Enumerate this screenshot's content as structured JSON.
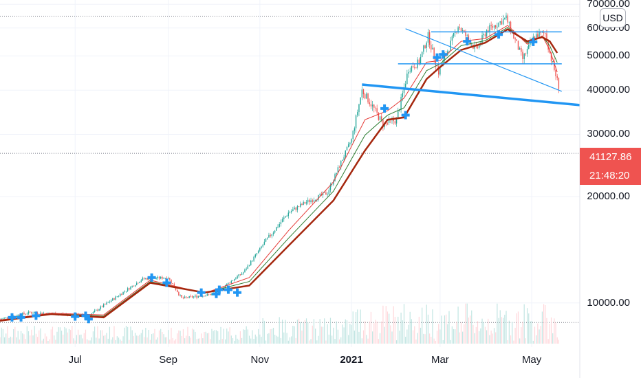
{
  "chart_data": {
    "type": "candlestick",
    "currency": "USD",
    "y_scale": "log",
    "ylim": [
      7500,
      72000
    ],
    "yticks": [
      {
        "value": 10000,
        "label": "10000.00"
      },
      {
        "value": 20000,
        "label": "20000.00"
      },
      {
        "value": 30000,
        "label": "30000.00"
      },
      {
        "value": 40000,
        "label": "40000.00"
      },
      {
        "value": 50000,
        "label": "50000.00"
      },
      {
        "value": 60000,
        "label": "60000.00"
      },
      {
        "value": 70000,
        "label": "70000.00"
      }
    ],
    "xticks": [
      {
        "date": "2020-07-01",
        "label": "Jul",
        "bold": false
      },
      {
        "date": "2020-09-01",
        "label": "Sep",
        "bold": false
      },
      {
        "date": "2020-11-01",
        "label": "Nov",
        "bold": false
      },
      {
        "date": "2021-01-01",
        "label": "2021",
        "bold": true
      },
      {
        "date": "2021-03-01",
        "label": "Mar",
        "bold": false
      },
      {
        "date": "2021-05-01",
        "label": "May",
        "bold": false
      }
    ],
    "x_range": [
      "2020-05-12",
      "2021-06-02"
    ],
    "last_price": "41127.86",
    "countdown": "21:48:20",
    "price_path": [
      [
        "2020-05-12",
        9000
      ],
      [
        "2020-06-01",
        9400
      ],
      [
        "2020-06-20",
        9300
      ],
      [
        "2020-07-10",
        9200
      ],
      [
        "2020-07-27",
        10300
      ],
      [
        "2020-08-15",
        11700
      ],
      [
        "2020-09-01",
        11800
      ],
      [
        "2020-09-10",
        10300
      ],
      [
        "2020-10-01",
        10600
      ],
      [
        "2020-10-21",
        12200
      ],
      [
        "2020-11-05",
        15000
      ],
      [
        "2020-11-20",
        18000
      ],
      [
        "2020-12-01",
        19200
      ],
      [
        "2020-12-16",
        20500
      ],
      [
        "2020-12-25",
        25000
      ],
      [
        "2021-01-01",
        29000
      ],
      [
        "2021-01-08",
        40000
      ],
      [
        "2021-01-15",
        36000
      ],
      [
        "2021-01-22",
        32000
      ],
      [
        "2021-01-31",
        33000
      ],
      [
        "2021-02-08",
        46000
      ],
      [
        "2021-02-15",
        48000
      ],
      [
        "2021-02-21",
        57000
      ],
      [
        "2021-02-28",
        45000
      ],
      [
        "2021-03-13",
        61000
      ],
      [
        "2021-03-25",
        52000
      ],
      [
        "2021-04-01",
        59000
      ],
      [
        "2021-04-14",
        64000
      ],
      [
        "2021-04-25",
        49000
      ],
      [
        "2021-05-03",
        57000
      ],
      [
        "2021-05-10",
        58000
      ],
      [
        "2021-05-14",
        49000
      ],
      [
        "2021-05-19",
        41127.86
      ]
    ],
    "ma_slow": [
      [
        "2020-05-12",
        8900
      ],
      [
        "2020-06-15",
        9300
      ],
      [
        "2020-07-20",
        9100
      ],
      [
        "2020-08-20",
        11400
      ],
      [
        "2020-09-25",
        10700
      ],
      [
        "2020-10-25",
        11200
      ],
      [
        "2020-11-20",
        14500
      ],
      [
        "2020-12-20",
        19500
      ],
      [
        "2021-01-10",
        27000
      ],
      [
        "2021-01-25",
        33000
      ],
      [
        "2021-02-05",
        33500
      ],
      [
        "2021-02-20",
        43000
      ],
      [
        "2021-03-01",
        46500
      ],
      [
        "2021-03-15",
        52000
      ],
      [
        "2021-03-31",
        54500
      ],
      [
        "2021-04-15",
        59500
      ],
      [
        "2021-04-28",
        55000
      ],
      [
        "2021-05-08",
        56500
      ],
      [
        "2021-05-13",
        55000
      ],
      [
        "2021-05-18",
        51000
      ]
    ],
    "ma_fast": [
      [
        "2020-05-12",
        8950
      ],
      [
        "2020-06-15",
        9350
      ],
      [
        "2020-07-20",
        9250
      ],
      [
        "2020-08-20",
        11600
      ],
      [
        "2020-09-25",
        10650
      ],
      [
        "2020-10-25",
        11800
      ],
      [
        "2020-11-20",
        16000
      ],
      [
        "2020-12-20",
        22000
      ],
      [
        "2021-01-10",
        33000
      ],
      [
        "2021-01-25",
        35000
      ],
      [
        "2021-02-05",
        38000
      ],
      [
        "2021-02-20",
        48000
      ],
      [
        "2021-03-01",
        48500
      ],
      [
        "2021-03-15",
        55000
      ],
      [
        "2021-03-31",
        56000
      ],
      [
        "2021-04-15",
        61000
      ],
      [
        "2021-04-28",
        54000
      ],
      [
        "2021-05-08",
        57000
      ],
      [
        "2021-05-13",
        52000
      ],
      [
        "2021-05-18",
        45000
      ]
    ],
    "horizontal_levels": [
      {
        "value": 64800,
        "style": "dotted"
      },
      {
        "value": 26500,
        "style": "dotted"
      },
      {
        "value": 8800,
        "style": "dotted"
      }
    ],
    "trendlines": [
      {
        "from": [
          "2021-02-23",
          58500
        ],
        "to": [
          "2021-05-21",
          58500
        ],
        "color": "#2196f3",
        "width": 1.5
      },
      {
        "from": [
          "2021-02-01",
          47500
        ],
        "to": [
          "2021-05-21",
          47500
        ],
        "color": "#2196f3",
        "width": 1.5
      },
      {
        "from": [
          "2021-02-06",
          59700
        ],
        "to": [
          "2021-05-21",
          39700
        ],
        "color": "#2196f3",
        "width": 1.2
      },
      {
        "from": [
          "2021-01-08",
          41500
        ],
        "to": [
          "2021-06-02",
          36300
        ],
        "color": "#2196f3",
        "width": 3.5
      }
    ],
    "markers": [
      [
        "2020-05-20",
        9100
      ],
      [
        "2020-05-26",
        9100
      ],
      [
        "2020-06-05",
        9200
      ],
      [
        "2020-07-01",
        9150
      ],
      [
        "2020-07-08",
        9200
      ],
      [
        "2020-07-10",
        9000
      ],
      [
        "2020-08-21",
        11800
      ],
      [
        "2020-08-31",
        11400
      ],
      [
        "2020-09-23",
        10700
      ],
      [
        "2020-10-03",
        10600
      ],
      [
        "2020-10-05",
        10900
      ],
      [
        "2020-10-11",
        10900
      ],
      [
        "2020-10-17",
        10700
      ],
      [
        "2021-01-23",
        35500
      ],
      [
        "2021-02-06",
        34000
      ],
      [
        "2021-02-27",
        49500
      ],
      [
        "2021-03-03",
        50500
      ],
      [
        "2021-03-19",
        55000
      ],
      [
        "2021-04-09",
        57500
      ],
      [
        "2021-05-02",
        54800
      ]
    ],
    "colors": {
      "up": "#26a69a",
      "down": "#ef5350",
      "ma_slow": "#a5270e",
      "ma_fast": "#e53935",
      "ma_green": "#2e7d32",
      "trendline": "#2196f3",
      "marker": "#2196f3",
      "grid": "#f0f3fa",
      "price_tag": "#ef5350"
    }
  }
}
